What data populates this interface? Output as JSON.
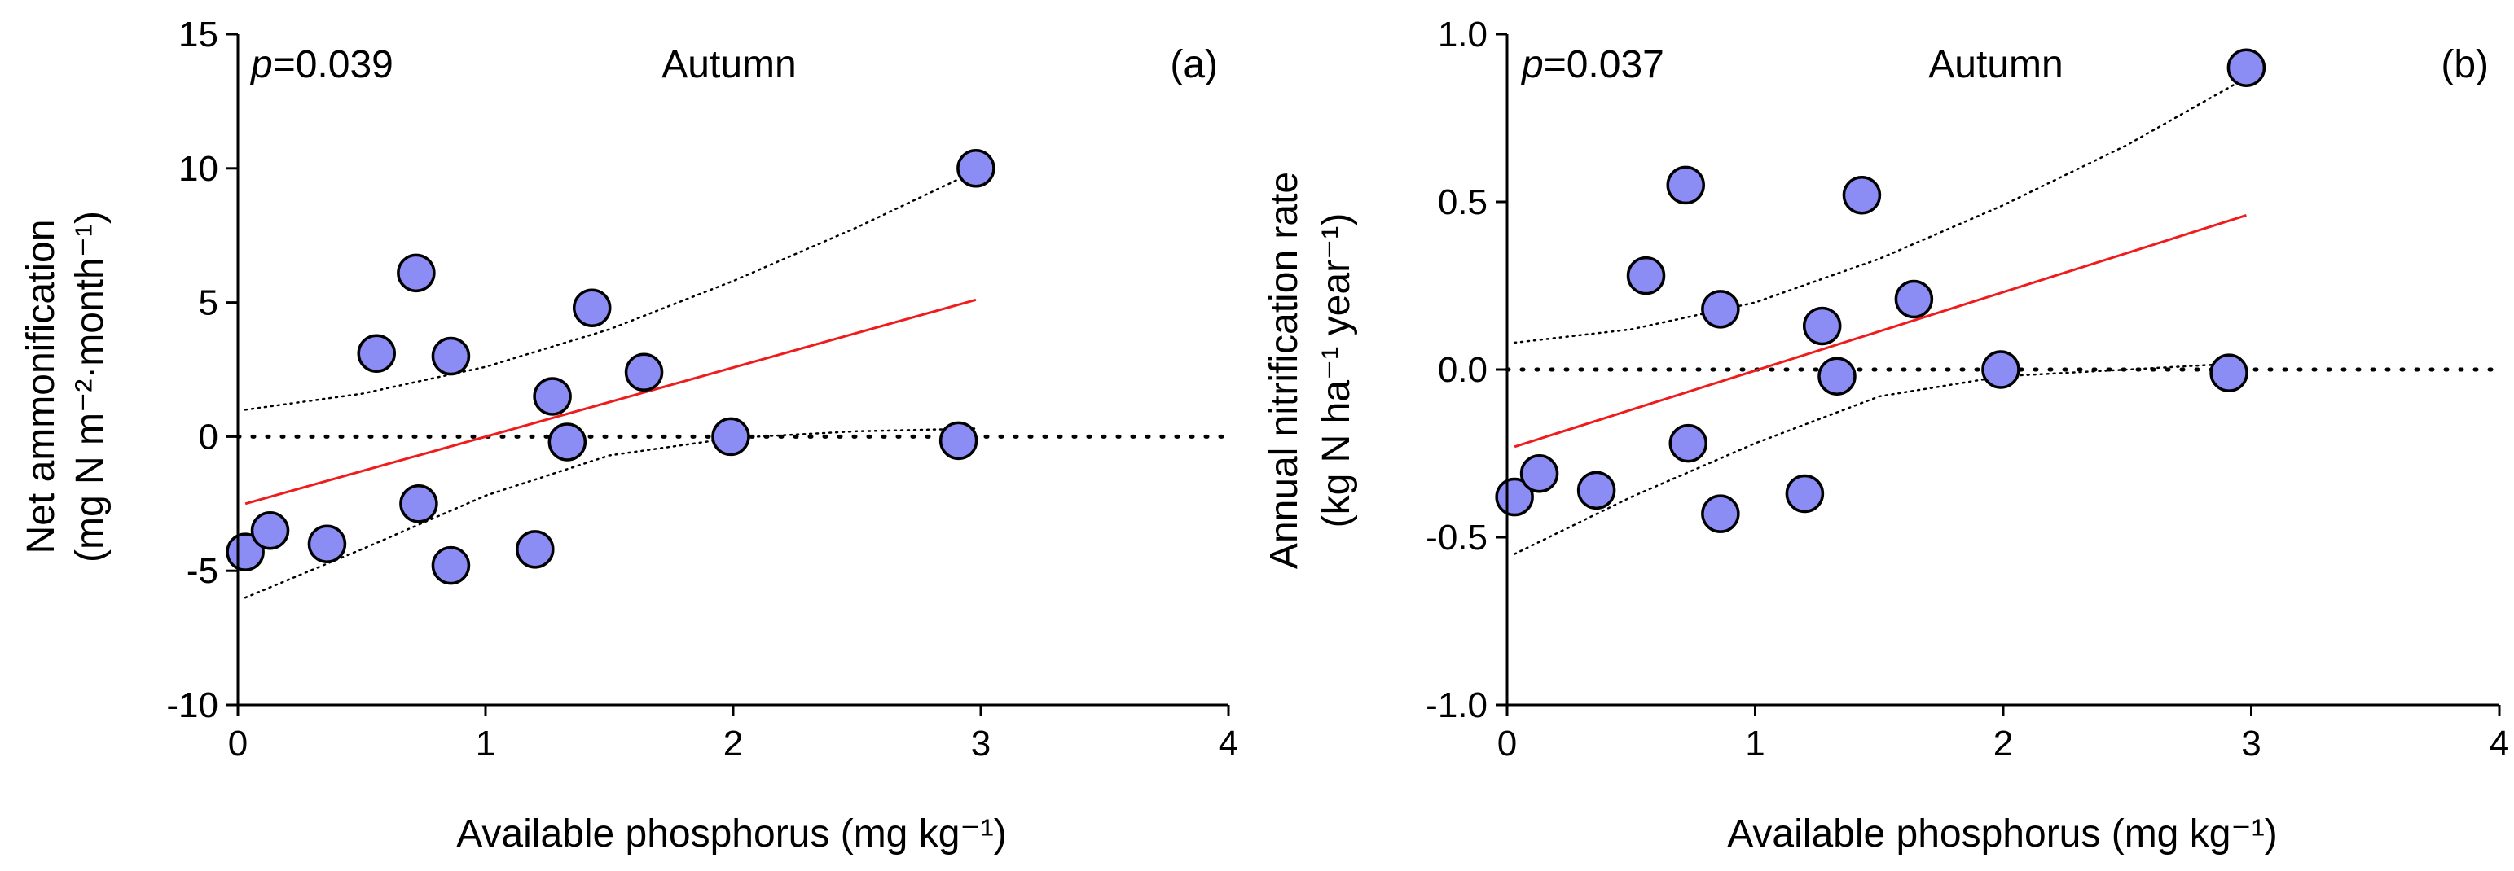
{
  "colors": {
    "points": "#8c8cf5",
    "fit": "#ee1c1c"
  },
  "chart_data": [
    {
      "type": "scatter",
      "panel_label": "(a)",
      "p_prefix": "p",
      "p_value": "=0.039",
      "season": "Autumn",
      "ylabel_line1": "Net ammonification",
      "ylabel_line2": "(mg N m⁻²·month⁻¹)",
      "xlabel": "Available phosphorus (mg kg⁻¹)",
      "xlim": [
        0,
        4
      ],
      "ylim": [
        -10,
        15
      ],
      "xticks": [
        0,
        1,
        2,
        3,
        4
      ],
      "yticks": [
        -10,
        -5,
        0,
        5,
        10,
        15
      ],
      "xtick_labels": [
        "0",
        "1",
        "2",
        "3",
        "4"
      ],
      "ytick_labels": [
        "-10",
        "-5",
        "0",
        "5",
        "10",
        "15"
      ],
      "zero_line": 0,
      "fit": {
        "x": [
          0.03,
          2.98
        ],
        "y": [
          -2.5,
          5.1
        ]
      },
      "ci_upper": {
        "x": [
          0.03,
          0.5,
          1.0,
          1.5,
          2.0,
          2.5,
          2.98
        ],
        "y": [
          1.0,
          1.6,
          2.6,
          4.0,
          5.8,
          7.8,
          9.9
        ]
      },
      "ci_lower": {
        "x": [
          0.03,
          0.5,
          1.0,
          1.5,
          2.0,
          2.5,
          2.98
        ],
        "y": [
          -6.0,
          -4.2,
          -2.2,
          -0.7,
          -0.05,
          0.2,
          0.3
        ]
      },
      "points": {
        "x": [
          0.03,
          0.13,
          0.36,
          0.56,
          0.72,
          0.73,
          0.86,
          0.86,
          1.2,
          1.27,
          1.33,
          1.43,
          1.64,
          1.99,
          2.91,
          2.98
        ],
        "y": [
          -4.3,
          -3.5,
          -4.0,
          3.1,
          6.1,
          -2.5,
          3.0,
          -4.8,
          -4.2,
          1.5,
          -0.2,
          4.8,
          2.4,
          0.0,
          -0.15,
          10.0
        ]
      }
    },
    {
      "type": "scatter",
      "panel_label": "(b)",
      "p_prefix": "p",
      "p_value": "=0.037",
      "season": "Autumn",
      "ylabel_line1": "Annual nitrification rate",
      "ylabel_line2": "(kg N ha⁻¹ year⁻¹)",
      "xlabel": "Available phosphorus (mg kg⁻¹)",
      "xlim": [
        0,
        4
      ],
      "ylim": [
        -1.0,
        1.0
      ],
      "xticks": [
        0,
        1,
        2,
        3,
        4
      ],
      "yticks": [
        -1.0,
        -0.5,
        0.0,
        0.5,
        1.0
      ],
      "xtick_labels": [
        "0",
        "1",
        "2",
        "3",
        "4"
      ],
      "ytick_labels": [
        "-1.0",
        "-0.5",
        "0.0",
        "0.5",
        "1.0"
      ],
      "zero_line": 0,
      "fit": {
        "x": [
          0.03,
          2.98
        ],
        "y": [
          -0.23,
          0.46
        ]
      },
      "ci_upper": {
        "x": [
          0.03,
          0.5,
          1.0,
          1.5,
          2.0,
          2.5,
          2.98
        ],
        "y": [
          0.08,
          0.12,
          0.2,
          0.33,
          0.49,
          0.67,
          0.87
        ]
      },
      "ci_lower": {
        "x": [
          0.03,
          0.5,
          1.0,
          1.5,
          2.0,
          2.5,
          2.98
        ],
        "y": [
          -0.55,
          -0.38,
          -0.22,
          -0.08,
          -0.02,
          0.0,
          0.02
        ]
      },
      "points": {
        "x": [
          0.03,
          0.13,
          0.36,
          0.56,
          0.72,
          0.73,
          0.86,
          0.86,
          1.2,
          1.27,
          1.33,
          1.43,
          1.64,
          1.99,
          2.91,
          2.98
        ],
        "y": [
          -0.38,
          -0.31,
          -0.36,
          0.28,
          0.55,
          -0.22,
          0.18,
          -0.43,
          -0.37,
          0.13,
          -0.02,
          0.52,
          0.21,
          0.0,
          -0.01,
          0.9
        ]
      }
    }
  ]
}
